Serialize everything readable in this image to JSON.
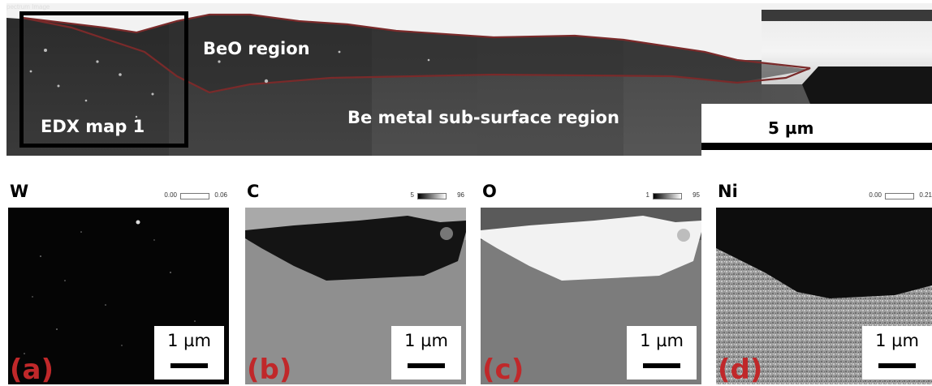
{
  "sem_image": {
    "corner_label": "pectrum Image",
    "edx_box_label": "EDX map 1",
    "beo_label": "BeO region",
    "be_label": "Be metal sub-surface region",
    "scale_bar_label": "5 µm",
    "colors": {
      "outline": "#7a2a2a",
      "box": "#000000"
    }
  },
  "panels": [
    {
      "element": "W",
      "colorbar": {
        "min": "0.00",
        "max": "0.06"
      },
      "scale_label": "1 µm",
      "letter": "(a)"
    },
    {
      "element": "C",
      "colorbar": {
        "min": "5",
        "max": "96"
      },
      "scale_label": "1 µm",
      "letter": "(b)"
    },
    {
      "element": "O",
      "colorbar": {
        "min": "1",
        "max": "95"
      },
      "scale_label": "1 µm",
      "letter": "(c)"
    },
    {
      "element": "Ni",
      "colorbar": {
        "min": "0.00",
        "max": "0.21"
      },
      "scale_label": "1 µm",
      "letter": "(d)"
    }
  ],
  "colors": {
    "letter_red": "#c0282a"
  }
}
